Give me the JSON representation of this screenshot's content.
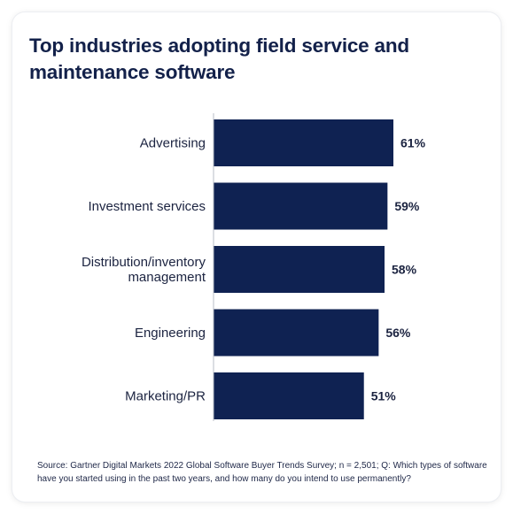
{
  "title": "Top industries adopting field service and maintenance software",
  "source": "Source: Gartner Digital Markets 2022 Global Software Buyer Trends Survey; n = 2,501; Q: Which types of software have you started using in the past two years, and how many do you intend to use permanently?",
  "colors": {
    "bar": "#0f2252",
    "text": "#1b2340",
    "axis": "#b9bdc7"
  },
  "chart_data": {
    "type": "bar",
    "orientation": "horizontal",
    "title": "Top industries adopting field service and maintenance software",
    "categories": [
      [
        "Advertising"
      ],
      [
        "Investment services"
      ],
      [
        "Distribution/inventory",
        "management"
      ],
      [
        "Engineering"
      ],
      [
        "Marketing/PR"
      ]
    ],
    "values": [
      61,
      59,
      58,
      56,
      51
    ],
    "value_labels": [
      "61%",
      "59%",
      "58%",
      "56%",
      "51%"
    ],
    "unit": "%",
    "xlim": [
      0,
      61
    ],
    "grid": false
  }
}
